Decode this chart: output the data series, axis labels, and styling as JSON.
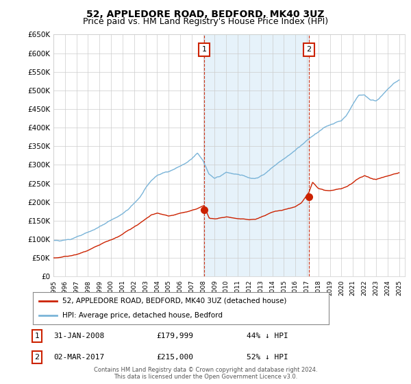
{
  "title": "52, APPLEDORE ROAD, BEDFORD, MK40 3UZ",
  "subtitle": "Price paid vs. HM Land Registry's House Price Index (HPI)",
  "title_fontsize": 10,
  "subtitle_fontsize": 9,
  "ylim": [
    0,
    650000
  ],
  "yticks": [
    0,
    50000,
    100000,
    150000,
    200000,
    250000,
    300000,
    350000,
    400000,
    450000,
    500000,
    550000,
    600000,
    650000
  ],
  "ytick_labels": [
    "£0",
    "£50K",
    "£100K",
    "£150K",
    "£200K",
    "£250K",
    "£300K",
    "£350K",
    "£400K",
    "£450K",
    "£500K",
    "£550K",
    "£600K",
    "£650K"
  ],
  "hpi_color": "#7ab4d8",
  "hpi_fill_color": "#d6eaf8",
  "property_color": "#cc2200",
  "marker1_date": "31-JAN-2008",
  "marker1_price": 179999,
  "marker1_pct": "44% ↓ HPI",
  "marker2_date": "02-MAR-2017",
  "marker2_price": 215000,
  "marker2_pct": "52% ↓ HPI",
  "legend_label1": "52, APPLEDORE ROAD, BEDFORD, MK40 3UZ (detached house)",
  "legend_label2": "HPI: Average price, detached house, Bedford",
  "footer": "Contains HM Land Registry data © Crown copyright and database right 2024.\nThis data is licensed under the Open Government Licence v3.0.",
  "background_color": "#ffffff",
  "grid_color": "#cccccc",
  "marker1_x": 2008.08,
  "marker2_x": 2017.17,
  "xlim_left": 1995.0,
  "xlim_right": 2025.5
}
